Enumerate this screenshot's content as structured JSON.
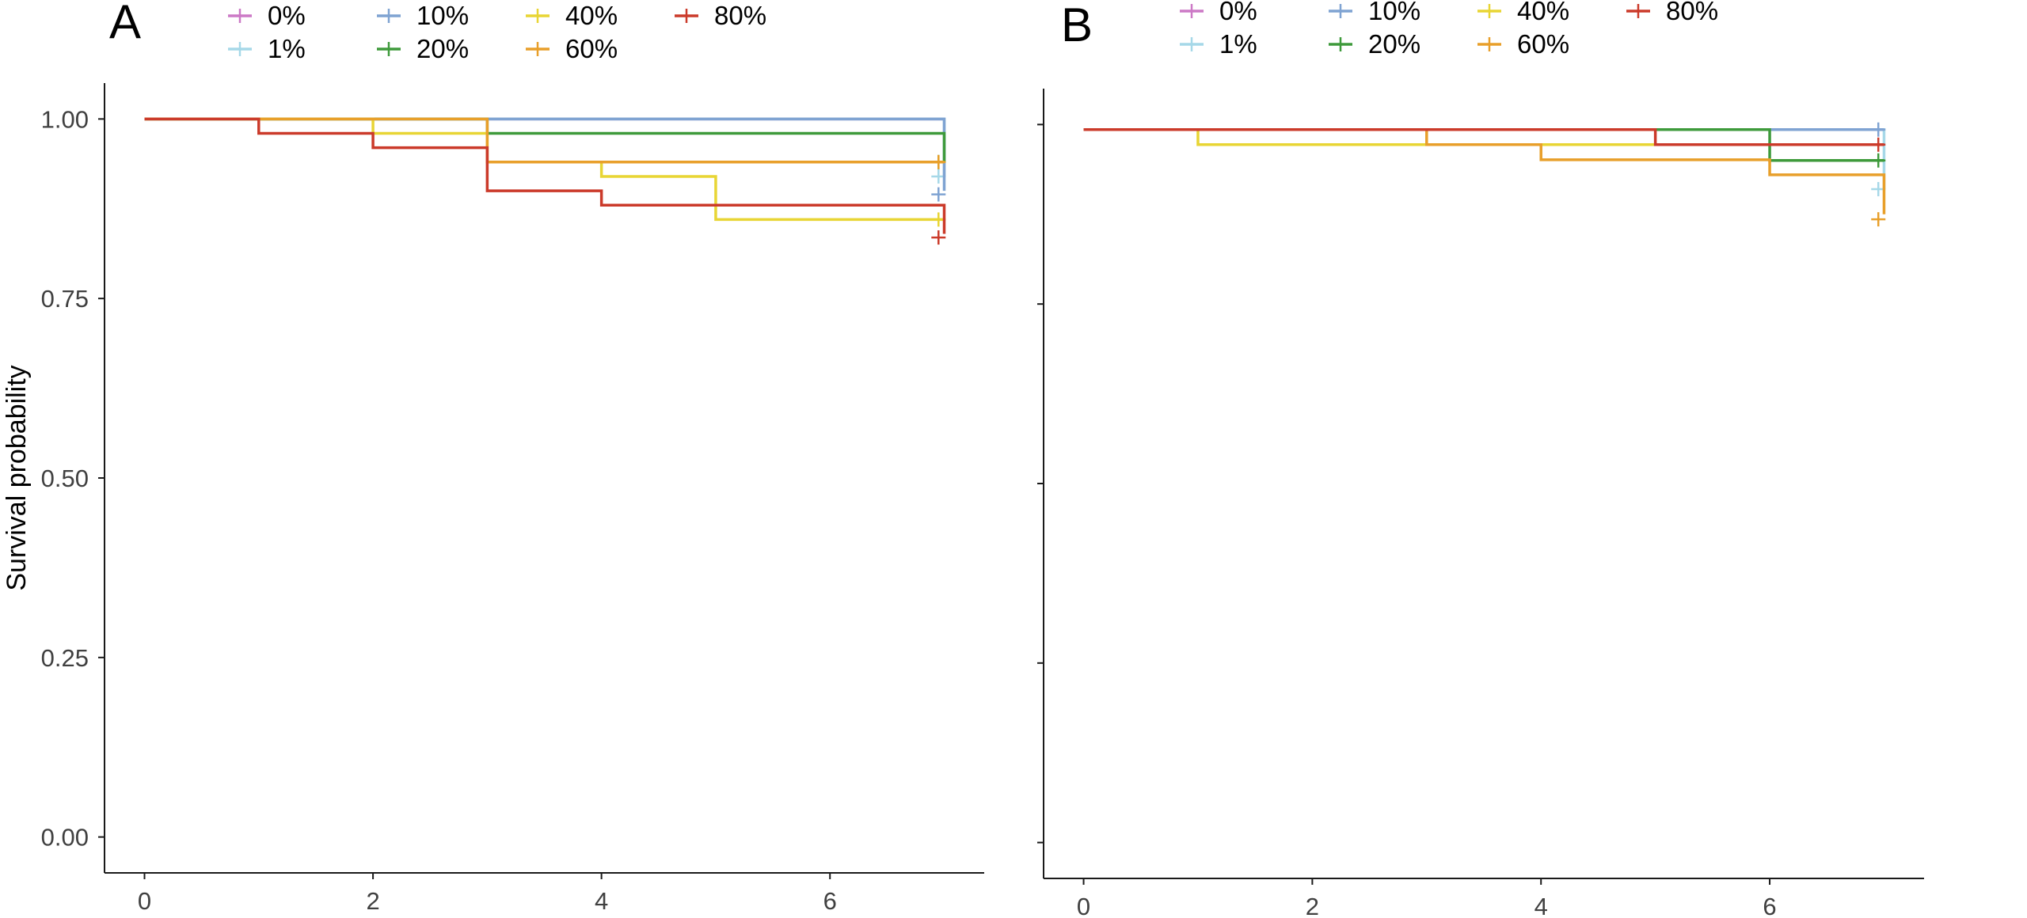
{
  "colors": {
    "0%": "#CC79C6",
    "1%": "#A6D8E8",
    "10%": "#7FA3D2",
    "20%": "#3E9A3B",
    "40%": "#E8D534",
    "60%": "#E89F2A",
    "80%": "#CB3A2A",
    "axis": "#1a1a1a",
    "text": "#404040"
  },
  "legend_order": [
    "0%",
    "10%",
    "40%",
    "80%",
    "1%",
    "20%",
    "60%"
  ],
  "chart_data": [
    {
      "type": "line",
      "step": "post",
      "panel_label": "A",
      "ylabel": "Survival probability",
      "xlim": [
        -0.35,
        7.35
      ],
      "ylim": [
        -0.05,
        1.05
      ],
      "x_ticks": [
        0,
        2,
        4,
        6
      ],
      "x_tick_labels": [
        "0",
        "2",
        "4",
        "6"
      ],
      "y_ticks": [
        0,
        0.25,
        0.5,
        0.75,
        1.0
      ],
      "y_tick_labels": [
        "0.00",
        "0.25",
        "0.50",
        "0.75",
        "1.00"
      ],
      "legend_position": "top",
      "series": [
        {
          "name": "0%",
          "x": [
            0,
            7
          ],
          "y": [
            1.0,
            1.0
          ],
          "censor": []
        },
        {
          "name": "1%",
          "x": [
            0,
            7,
            7
          ],
          "y": [
            1.0,
            1.0,
            0.92
          ],
          "censor": [
            [
              6.95,
              0.92
            ]
          ]
        },
        {
          "name": "10%",
          "x": [
            0,
            7,
            7
          ],
          "y": [
            1.0,
            1.0,
            0.9
          ],
          "censor": [
            [
              6.95,
              0.895
            ]
          ]
        },
        {
          "name": "20%",
          "x": [
            0,
            1,
            3,
            7,
            7
          ],
          "y": [
            1.0,
            1.0,
            0.98,
            0.98,
            0.94
          ],
          "censor": [
            [
              6.95,
              0.94
            ]
          ]
        },
        {
          "name": "40%",
          "x": [
            0,
            2,
            3,
            4,
            5,
            7
          ],
          "y": [
            1.0,
            0.98,
            0.94,
            0.92,
            0.86,
            0.86
          ],
          "censor": [
            [
              6.95,
              0.86
            ]
          ]
        },
        {
          "name": "60%",
          "x": [
            0,
            3,
            7
          ],
          "y": [
            1.0,
            0.94,
            0.94
          ],
          "censor": [
            [
              6.95,
              0.94
            ]
          ]
        },
        {
          "name": "80%",
          "x": [
            0,
            1,
            2,
            3,
            4,
            7,
            7
          ],
          "y": [
            1.0,
            0.98,
            0.96,
            0.9,
            0.88,
            0.88,
            0.84
          ],
          "censor": [
            [
              6.95,
              0.835
            ]
          ]
        }
      ]
    },
    {
      "type": "line",
      "step": "post",
      "panel_label": "B",
      "ylabel": "",
      "xlim": [
        -0.35,
        7.35
      ],
      "ylim": [
        -0.05,
        1.05
      ],
      "x_ticks": [
        0,
        2,
        4,
        6
      ],
      "x_tick_labels": [
        "0",
        "2",
        "4",
        "6"
      ],
      "y_ticks": [
        0,
        0.25,
        0.5,
        0.75,
        1.0
      ],
      "y_tick_labels": [],
      "legend_position": "top",
      "series": [
        {
          "name": "0%",
          "x": [
            0,
            7
          ],
          "y": [
            0.993,
            0.993
          ],
          "censor": []
        },
        {
          "name": "1%",
          "x": [
            0,
            2,
            7,
            7
          ],
          "y": [
            0.993,
            0.993,
            0.993,
            0.91
          ],
          "censor": [
            [
              6.95,
              0.91
            ]
          ]
        },
        {
          "name": "10%",
          "x": [
            0,
            7
          ],
          "y": [
            0.993,
            0.993
          ],
          "censor": [
            [
              6.95,
              0.993
            ]
          ]
        },
        {
          "name": "20%",
          "x": [
            0,
            6,
            7
          ],
          "y": [
            0.993,
            0.95,
            0.95
          ],
          "censor": [
            [
              6.95,
              0.95
            ]
          ]
        },
        {
          "name": "40%",
          "x": [
            0,
            1,
            3,
            6
          ],
          "y": [
            0.993,
            0.972,
            0.972,
            0.972
          ],
          "censor": []
        },
        {
          "name": "60%",
          "x": [
            0,
            3,
            4,
            6,
            7,
            7
          ],
          "y": [
            0.993,
            0.972,
            0.951,
            0.93,
            0.93,
            0.875
          ],
          "censor": [
            [
              6.95,
              0.868
            ]
          ]
        },
        {
          "name": "80%",
          "x": [
            0,
            5,
            7
          ],
          "y": [
            0.993,
            0.972,
            0.972
          ],
          "censor": [
            [
              6.95,
              0.972
            ]
          ]
        }
      ]
    }
  ]
}
